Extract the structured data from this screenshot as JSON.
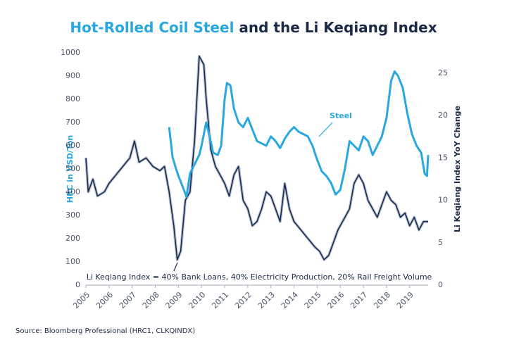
{
  "chart_data": {
    "type": "line",
    "title": [
      "Hot-Rolled Coil Steel",
      " and the Li Keqiang Index"
    ],
    "y_label": "HRC in USD/Ton",
    "y2_label": "Li Keqiang Index YoY Change",
    "annotations": [
      "Steel",
      "Li Keqiang Index = 40% Bank Loans, 40% Electricity Production, 20% Rail Freight Volume"
    ],
    "source": "Source: Bloomberg Professional (HRC1, CLKQINDX)",
    "xlim": [
      2005,
      2019.8
    ],
    "xticks": [
      2005,
      2006,
      2007,
      2008,
      2009,
      2010,
      2011,
      2012,
      2013,
      2014,
      2015,
      2016,
      2017,
      2018,
      2019
    ],
    "ylim": [
      0,
      1000
    ],
    "yticks": [
      0,
      100,
      200,
      300,
      400,
      500,
      600,
      700,
      800,
      900,
      1000
    ],
    "y2lim": [
      0,
      27.4
    ],
    "y2ticks": [
      0,
      5,
      10,
      15,
      20,
      25
    ],
    "series": [
      {
        "name": "Steel",
        "color": "#29a8e0",
        "axis": "y",
        "x": [
          2008.6,
          2008.75,
          2008.9,
          2009.0,
          2009.2,
          2009.35,
          2009.5,
          2009.7,
          2009.9,
          2010.0,
          2010.2,
          2010.35,
          2010.5,
          2010.7,
          2010.85,
          2011.0,
          2011.1,
          2011.25,
          2011.4,
          2011.6,
          2011.8,
          2012.0,
          2012.2,
          2012.4,
          2012.6,
          2012.8,
          2013.0,
          2013.2,
          2013.4,
          2013.6,
          2013.8,
          2014.0,
          2014.2,
          2014.4,
          2014.6,
          2014.8,
          2015.0,
          2015.2,
          2015.4,
          2015.6,
          2015.8,
          2016.0,
          2016.2,
          2016.4,
          2016.6,
          2016.8,
          2017.0,
          2017.2,
          2017.4,
          2017.6,
          2017.8,
          2018.0,
          2018.2,
          2018.35,
          2018.5,
          2018.7,
          2018.9,
          2019.1,
          2019.3,
          2019.5,
          2019.65,
          2019.75,
          2019.8
        ],
        "values": [
          680,
          550,
          500,
          470,
          420,
          380,
          480,
          520,
          560,
          600,
          700,
          640,
          570,
          560,
          600,
          800,
          870,
          860,
          760,
          700,
          680,
          720,
          670,
          620,
          610,
          600,
          640,
          620,
          590,
          630,
          660,
          680,
          660,
          650,
          640,
          600,
          540,
          490,
          470,
          440,
          390,
          410,
          500,
          620,
          600,
          580,
          640,
          620,
          560,
          600,
          640,
          720,
          880,
          920,
          900,
          850,
          740,
          650,
          600,
          570,
          480,
          470,
          560
        ]
      },
      {
        "name": "Li Keqiang Index",
        "color": "#1b2a47",
        "axis": "y2",
        "x": [
          2005.0,
          2005.1,
          2005.3,
          2005.5,
          2005.8,
          2006.0,
          2006.3,
          2006.6,
          2006.9,
          2007.1,
          2007.3,
          2007.6,
          2007.9,
          2008.2,
          2008.4,
          2008.6,
          2008.8,
          2008.95,
          2009.1,
          2009.3,
          2009.5,
          2009.7,
          2009.8,
          2009.9,
          2010.1,
          2010.2,
          2010.4,
          2010.6,
          2010.8,
          2011.0,
          2011.2,
          2011.4,
          2011.6,
          2011.8,
          2012.0,
          2012.2,
          2012.4,
          2012.6,
          2012.8,
          2013.0,
          2013.2,
          2013.4,
          2013.6,
          2013.8,
          2014.0,
          2014.3,
          2014.6,
          2014.9,
          2015.1,
          2015.3,
          2015.5,
          2015.7,
          2015.9,
          2016.1,
          2016.4,
          2016.6,
          2016.8,
          2017.0,
          2017.2,
          2017.4,
          2017.6,
          2017.8,
          2018.0,
          2018.2,
          2018.4,
          2018.6,
          2018.8,
          2019.0,
          2019.2,
          2019.4,
          2019.6,
          2019.8
        ],
        "values": [
          15,
          11,
          12.5,
          10.5,
          11,
          12,
          13,
          14,
          15,
          17,
          14.5,
          15,
          14,
          13.5,
          14,
          11,
          7,
          3,
          4,
          10,
          11,
          17,
          22,
          27,
          26,
          22,
          16,
          14,
          13,
          12,
          10.5,
          13,
          14,
          10,
          9,
          7,
          7.5,
          9,
          11,
          10.5,
          9,
          7.5,
          12,
          9,
          7.5,
          6.5,
          5.5,
          4.5,
          4,
          3,
          3.5,
          5,
          6.5,
          7.5,
          9,
          12,
          13,
          12,
          10,
          9,
          8,
          9.5,
          11,
          10,
          9.5,
          8,
          8.5,
          7,
          8,
          6.5,
          7.5,
          7.5
        ]
      }
    ]
  }
}
